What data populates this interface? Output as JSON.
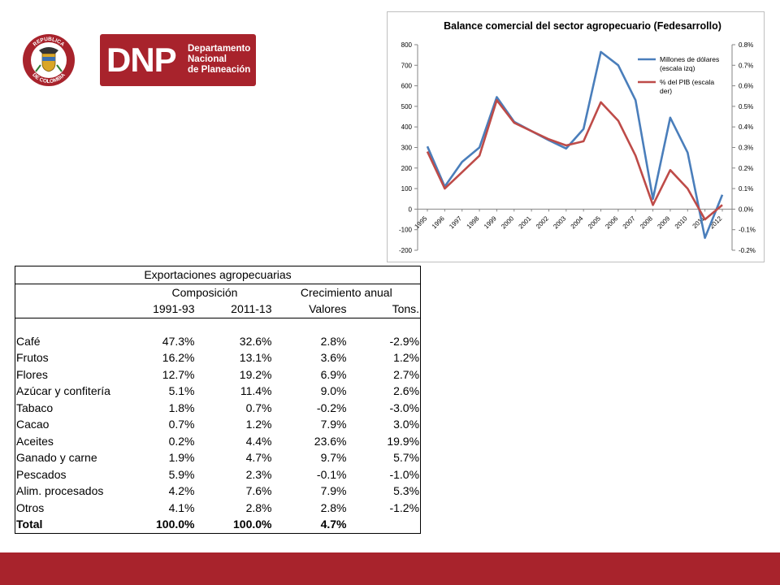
{
  "logo": {
    "acronym": "DNP",
    "lines": [
      "Departamento",
      "Nacional",
      "de Planeación"
    ],
    "seal_top": "REPUBLICA",
    "seal_bottom": "DE COLOMBIA",
    "brand_color": "#a8232c"
  },
  "chart_data": {
    "type": "line",
    "title": "Balance comercial del sector agropecuario (Fedesarrollo)",
    "categories": [
      "1995",
      "1996",
      "1997",
      "1998",
      "1999",
      "2000",
      "2001",
      "2002",
      "2003",
      "2004",
      "2005",
      "2006",
      "2007",
      "2008",
      "2009",
      "2010",
      "2011",
      "2012"
    ],
    "y_left": {
      "lim": [
        -200,
        800
      ],
      "ticks": [
        800,
        700,
        600,
        500,
        400,
        300,
        200,
        100,
        0,
        -100,
        -200
      ]
    },
    "y_right": {
      "lim": [
        -0.2,
        0.8
      ],
      "ticks": [
        "0.8%",
        "0.7%",
        "0.6%",
        "0.5%",
        "0.4%",
        "0.3%",
        "0.2%",
        "0.1%",
        "0.0%",
        "-0.1%",
        "-0.2%"
      ]
    },
    "legend_position": "top-right",
    "series": [
      {
        "name": "Millones de dólares (escala izq)",
        "axis": "left",
        "color": "#4a7ebb",
        "values": [
          305,
          110,
          230,
          300,
          545,
          425,
          380,
          335,
          295,
          390,
          765,
          700,
          530,
          50,
          445,
          275,
          -140,
          70
        ]
      },
      {
        "name": "% del PIB (escala der)",
        "axis": "right",
        "color": "#be4b48",
        "values": [
          0.28,
          0.1,
          0.18,
          0.26,
          0.53,
          0.42,
          0.38,
          0.34,
          0.31,
          0.33,
          0.52,
          0.43,
          0.26,
          0.02,
          0.19,
          0.1,
          -0.05,
          0.02
        ]
      }
    ]
  },
  "table": {
    "title": "Exportaciones agropecuarias",
    "group_headers": [
      "Composición",
      "Crecimiento anual"
    ],
    "sub_headers": [
      "1991-93",
      "2011-13",
      "Valores",
      "Tons."
    ],
    "rows": [
      {
        "label": "Café",
        "cells": [
          "47.3%",
          "32.6%",
          "2.8%",
          "-2.9%"
        ]
      },
      {
        "label": "Frutos",
        "cells": [
          "16.2%",
          "13.1%",
          "3.6%",
          "1.2%"
        ]
      },
      {
        "label": "Flores",
        "cells": [
          "12.7%",
          "19.2%",
          "6.9%",
          "2.7%"
        ]
      },
      {
        "label": "Azúcar y confitería",
        "cells": [
          "5.1%",
          "11.4%",
          "9.0%",
          "2.6%"
        ]
      },
      {
        "label": "Tabaco",
        "cells": [
          "1.8%",
          "0.7%",
          "-0.2%",
          "-3.0%"
        ]
      },
      {
        "label": "Cacao",
        "cells": [
          "0.7%",
          "1.2%",
          "7.9%",
          "3.0%"
        ]
      },
      {
        "label": "Aceites",
        "cells": [
          "0.2%",
          "4.4%",
          "23.6%",
          "19.9%"
        ]
      },
      {
        "label": "Ganado y carne",
        "cells": [
          "1.9%",
          "4.7%",
          "9.7%",
          "5.7%"
        ]
      },
      {
        "label": "Pescados",
        "cells": [
          "5.9%",
          "2.3%",
          "-0.1%",
          "-1.0%"
        ]
      },
      {
        "label": "Alim. procesados",
        "cells": [
          "4.2%",
          "7.6%",
          "7.9%",
          "5.3%"
        ]
      },
      {
        "label": "Otros",
        "cells": [
          "4.1%",
          "2.8%",
          "2.8%",
          "-1.2%"
        ]
      }
    ],
    "total": {
      "label": "Total",
      "cells": [
        "100.0%",
        "100.0%",
        "4.7%",
        ""
      ]
    }
  },
  "footer": {
    "color": "#a8232c"
  }
}
